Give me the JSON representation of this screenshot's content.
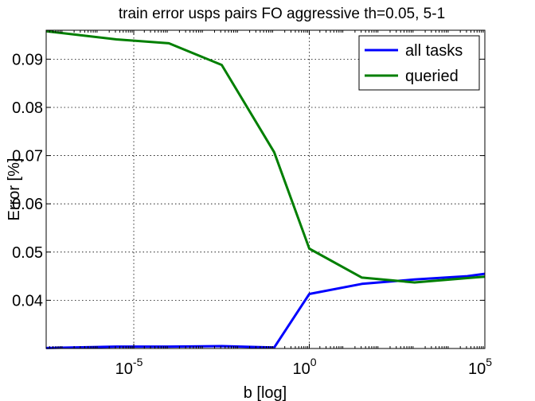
{
  "chart_data": {
    "type": "line",
    "title": "train error usps pairs FO aggressive th=0.05, 5-1",
    "xlabel": "b [log]",
    "ylabel": "Error [%]",
    "xscale": "log",
    "xlim": [
      3.2e-08,
      100000
    ],
    "ylim": [
      0.03,
      0.096
    ],
    "grid": true,
    "legend_position": "top-right",
    "x": [
      3.2e-08,
      3.2e-06,
      0.0001,
      0.0032,
      0.1,
      1,
      31.6,
      1000,
      31623,
      100000
    ],
    "x_tick_labels": [
      {
        "base": "10",
        "exp": "-5",
        "value": 1e-05
      },
      {
        "base": "10",
        "exp": "0",
        "value": 1
      },
      {
        "base": "10",
        "exp": "5",
        "value": 100000
      }
    ],
    "y_ticks": [
      0.04,
      0.05,
      0.06,
      0.07,
      0.08,
      0.09
    ],
    "y_tick_labels": [
      "0.04",
      "0.05",
      "0.06",
      "0.07",
      "0.08",
      "0.09"
    ],
    "series": [
      {
        "name": "all tasks",
        "color": "#0000ff",
        "values": [
          0.0301,
          0.0304,
          0.0304,
          0.0305,
          0.0302,
          0.0413,
          0.0434,
          0.0443,
          0.045,
          0.0455
        ]
      },
      {
        "name": "queried",
        "color": "#007f00",
        "values": [
          0.0958,
          0.0941,
          0.0933,
          0.0888,
          0.0707,
          0.0507,
          0.0447,
          0.0437,
          0.0446,
          0.0449
        ]
      }
    ],
    "series_x": [
      [
        3.2e-08,
        3.2e-06,
        0.0001,
        0.0032,
        0.1,
        1,
        31.6,
        1000,
        31623,
        100000
      ],
      [
        3.2e-08,
        3.2e-06,
        0.0001,
        0.0032,
        0.1,
        1,
        31.6,
        1000,
        31623,
        100000
      ]
    ]
  }
}
